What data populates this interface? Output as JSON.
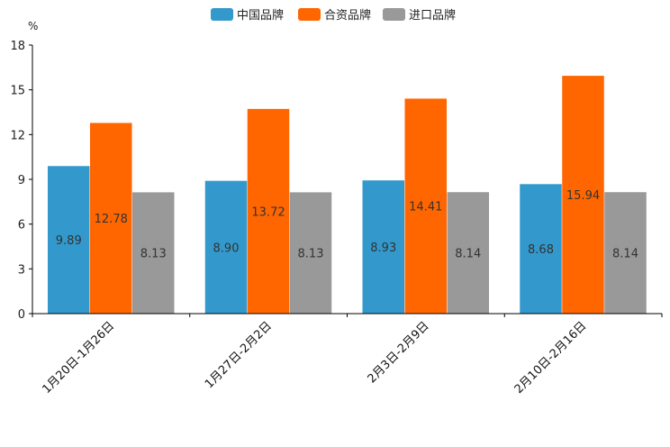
{
  "chart_data": {
    "type": "bar",
    "title": "",
    "unit_label": "%",
    "xlabel": "",
    "ylabel": "%",
    "ylim": [
      0,
      18
    ],
    "yticks": [
      0,
      3,
      6,
      9,
      12,
      15,
      18
    ],
    "grid": false,
    "legend_position": "top-center",
    "categories": [
      "1月20日-1月26日",
      "1月27日-2月2日",
      "2月3日-2月9日",
      "2月10日-2月16日"
    ],
    "series": [
      {
        "name": "中国品牌",
        "color": "#3399cc",
        "values": [
          9.89,
          8.9,
          8.93,
          8.68
        ],
        "labels": [
          "9.89",
          "8.90",
          "8.93",
          "8.68"
        ]
      },
      {
        "name": "合资品牌",
        "color": "#ff6600",
        "values": [
          12.78,
          13.72,
          14.41,
          15.94
        ],
        "labels": [
          "12.78",
          "13.72",
          "14.41",
          "15.94"
        ]
      },
      {
        "name": "进口品牌",
        "color": "#999999",
        "values": [
          8.13,
          8.13,
          8.14,
          8.14
        ],
        "labels": [
          "8.13",
          "8.13",
          "8.14",
          "8.14"
        ]
      }
    ]
  }
}
